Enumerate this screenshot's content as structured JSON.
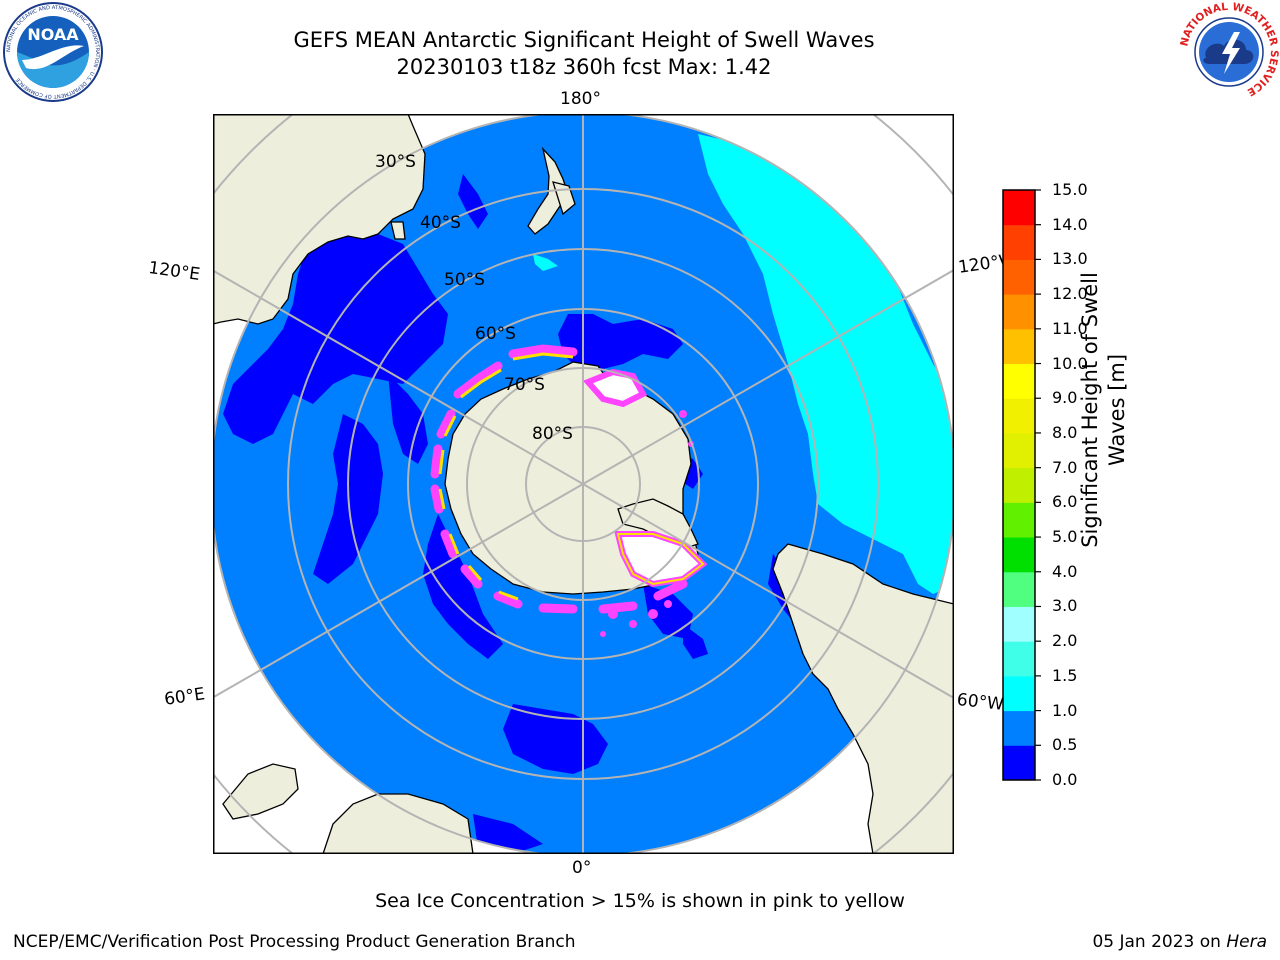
{
  "title": {
    "line1": "GEFS MEAN Antarctic Significant Height of Swell Waves",
    "line2": "20230103 t18z 360h fcst   Max: 1.42"
  },
  "map": {
    "projection": "south-polar-stereographic",
    "longitude_labels": {
      "top": "180°",
      "bottom": "0°",
      "upper_left": "120°E",
      "upper_right": "120°W",
      "lower_left": "60°E",
      "lower_right": "60°W"
    },
    "latitude_labels": [
      "30°S",
      "40°S",
      "50°S",
      "60°S",
      "70°S",
      "80°S"
    ],
    "colors": {
      "land": "#eeeedc",
      "ocean_0_5_1_0": "#0080ff",
      "ocean_0_0_5": "#0000ff",
      "ocean_1_0_1_5": "#00ffff",
      "sea_ice": "#ff44ff",
      "ice_edge": "#ffe000",
      "grid": "#b4b4b4"
    }
  },
  "colorbar": {
    "label": "Significant Height of Swell Waves [m]",
    "label_line1": "Significant Height of Swell",
    "label_line2": "Waves [m]",
    "ticks": [
      "15.0",
      "14.0",
      "13.0",
      "12.0",
      "11.0",
      "10.0",
      "9.0",
      "8.0",
      "7.0",
      "6.0",
      "5.0",
      "4.0",
      "3.0",
      "2.0",
      "1.5",
      "1.0",
      "0.5",
      "0.0"
    ],
    "bins": [
      {
        "from": 0.0,
        "to": 0.5,
        "color": "#0000ff"
      },
      {
        "from": 0.5,
        "to": 1.0,
        "color": "#0080ff"
      },
      {
        "from": 1.0,
        "to": 1.5,
        "color": "#00ffff"
      },
      {
        "from": 1.5,
        "to": 2.0,
        "color": "#40ffe8"
      },
      {
        "from": 2.0,
        "to": 3.0,
        "color": "#a0ffff"
      },
      {
        "from": 3.0,
        "to": 4.0,
        "color": "#50ff80"
      },
      {
        "from": 4.0,
        "to": 5.0,
        "color": "#00e000"
      },
      {
        "from": 5.0,
        "to": 6.0,
        "color": "#60f000"
      },
      {
        "from": 6.0,
        "to": 7.0,
        "color": "#c0f000"
      },
      {
        "from": 7.0,
        "to": 8.0,
        "color": "#e0f000"
      },
      {
        "from": 8.0,
        "to": 9.0,
        "color": "#f0f000"
      },
      {
        "from": 9.0,
        "to": 10.0,
        "color": "#ffff00"
      },
      {
        "from": 10.0,
        "to": 11.0,
        "color": "#ffc000"
      },
      {
        "from": 11.0,
        "to": 12.0,
        "color": "#ff9000"
      },
      {
        "from": 12.0,
        "to": 13.0,
        "color": "#ff6000"
      },
      {
        "from": 13.0,
        "to": 14.0,
        "color": "#ff4000"
      },
      {
        "from": 14.0,
        "to": 15.0,
        "color": "#ff0000"
      }
    ]
  },
  "footer": {
    "note": "Sea Ice Concentration > 15% is shown in pink to yellow",
    "credit": "NCEP/EMC/Verification Post Processing Product Generation Branch",
    "date": "05 Jan 2023 on ",
    "machine": "Hera"
  },
  "logos": {
    "left": {
      "text": "NOAA",
      "ring_text": "NATIONAL OCEANIC AND ATMOSPHERIC ADMINISTRATION · U.S. DEPARTMENT OF COMMERCE"
    },
    "right": {
      "ring_text": "NATIONAL WEATHER SERVICE"
    }
  }
}
